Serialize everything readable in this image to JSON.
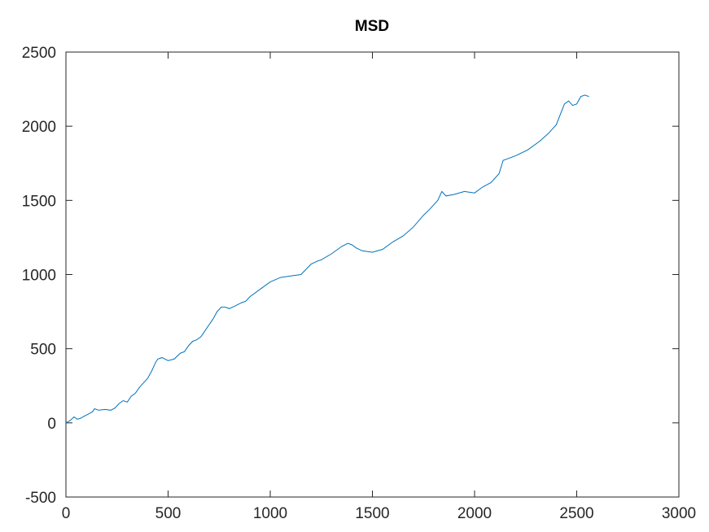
{
  "chart_data": {
    "type": "line",
    "title": "MSD",
    "xlabel": "",
    "ylabel": "",
    "xlim": [
      0,
      3000
    ],
    "ylim": [
      -500,
      2500
    ],
    "xticks": [
      0,
      500,
      1000,
      1500,
      2000,
      2500,
      3000
    ],
    "yticks": [
      -500,
      0,
      500,
      1000,
      1500,
      2000,
      2500
    ],
    "xtick_labels": [
      "0",
      "500",
      "1000",
      "1500",
      "2000",
      "2500",
      "3000"
    ],
    "ytick_labels": [
      "-500",
      "0",
      "500",
      "1000",
      "1500",
      "2000",
      "2500"
    ],
    "grid": false,
    "series": [
      {
        "color": "#0072bd",
        "x": [
          0,
          20,
          40,
          55,
          70,
          90,
          110,
          130,
          140,
          160,
          190,
          220,
          240,
          260,
          280,
          300,
          320,
          340,
          360,
          380,
          400,
          420,
          440,
          450,
          470,
          500,
          530,
          560,
          580,
          600,
          620,
          640,
          660,
          680,
          700,
          720,
          740,
          760,
          780,
          800,
          830,
          860,
          880,
          900,
          950,
          1000,
          1050,
          1100,
          1150,
          1200,
          1230,
          1250,
          1300,
          1350,
          1380,
          1400,
          1420,
          1450,
          1500,
          1550,
          1600,
          1650,
          1700,
          1750,
          1780,
          1800,
          1820,
          1840,
          1860,
          1900,
          1950,
          2000,
          2040,
          2080,
          2120,
          2140,
          2160,
          2200,
          2260,
          2320,
          2360,
          2400,
          2420,
          2440,
          2460,
          2480,
          2500,
          2520,
          2540,
          2560
        ],
        "y": [
          0,
          15,
          40,
          25,
          30,
          45,
          60,
          75,
          95,
          85,
          90,
          85,
          100,
          130,
          150,
          140,
          180,
          200,
          240,
          270,
          300,
          350,
          410,
          430,
          440,
          420,
          430,
          470,
          480,
          520,
          550,
          560,
          580,
          620,
          660,
          700,
          750,
          780,
          780,
          770,
          790,
          810,
          820,
          850,
          900,
          950,
          980,
          990,
          1000,
          1070,
          1090,
          1100,
          1140,
          1190,
          1210,
          1200,
          1180,
          1160,
          1150,
          1170,
          1220,
          1260,
          1320,
          1400,
          1440,
          1470,
          1500,
          1560,
          1530,
          1540,
          1560,
          1550,
          1590,
          1620,
          1680,
          1770,
          1780,
          1800,
          1840,
          1900,
          1950,
          2010,
          2080,
          2150,
          2170,
          2140,
          2150,
          2200,
          2210,
          2200
        ]
      }
    ]
  }
}
